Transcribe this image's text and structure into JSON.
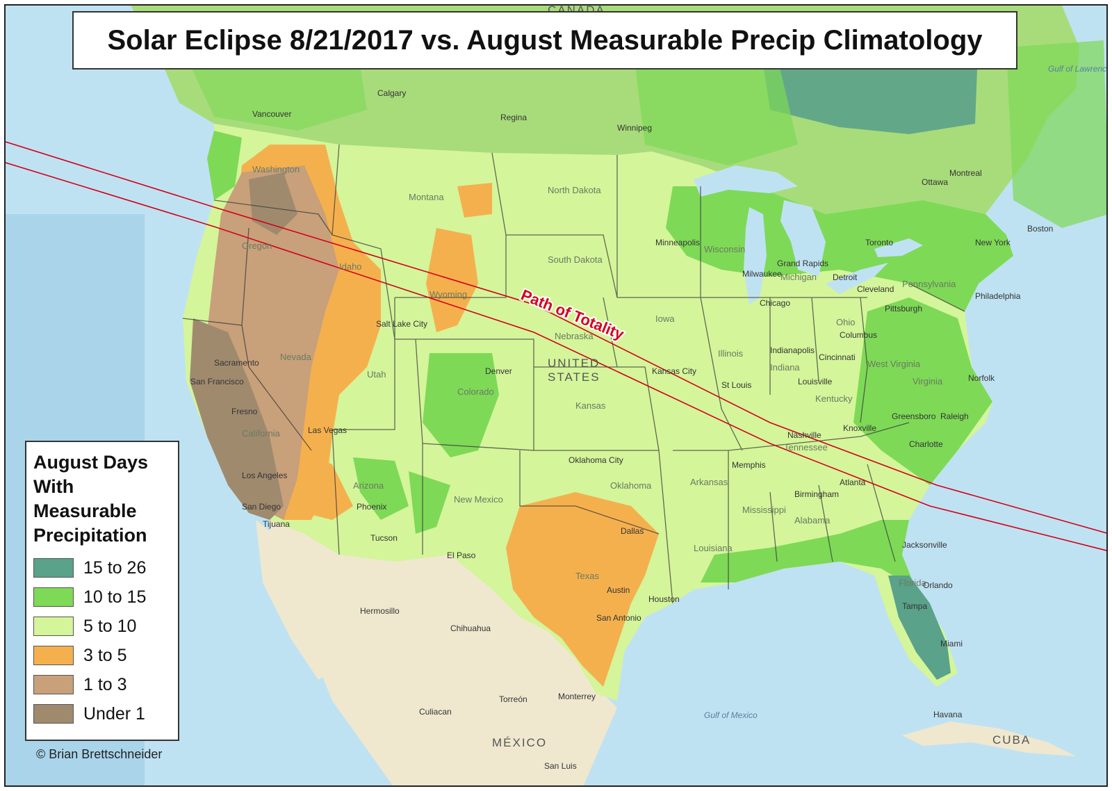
{
  "title": "Solar Eclipse 8/21/2017 vs. August Measurable Precip Climatology",
  "legend": {
    "title_lines": [
      "August Days",
      "With",
      "Measurable",
      "Precipitation"
    ],
    "items": [
      {
        "label": "15 to 26",
        "color": "#5aa28a"
      },
      {
        "label": "10 to 15",
        "color": "#7ed957"
      },
      {
        "label": "5 to 10",
        "color": "#d4f59a"
      },
      {
        "label": "3 to 5",
        "color": "#f5b04e"
      },
      {
        "label": "1 to 3",
        "color": "#c8a07a"
      },
      {
        "label": "Under 1",
        "color": "#a08a6e"
      }
    ]
  },
  "path_label": "Path of Totality",
  "credit": "© Brian Brettschneider",
  "labels": {
    "countries": [
      "UNITED",
      "STATES",
      "MÉXICO",
      "CANADA",
      "CUBA"
    ],
    "water": [
      "Gulf of Mexico",
      "Gulf of Lawrence"
    ],
    "states": [
      "Montana",
      "North Dakota",
      "South Dakota",
      "Wyoming",
      "Nebraska",
      "Iowa",
      "Kansas",
      "Colorado",
      "Utah",
      "Nevada",
      "Oregon",
      "Idaho",
      "California",
      "Arizona",
      "New Mexico",
      "Texas",
      "Oklahoma",
      "Arkansas",
      "Louisiana",
      "Mississippi",
      "Alabama",
      "Tennessee",
      "Kentucky",
      "Illinois",
      "Indiana",
      "Ohio",
      "Michigan",
      "Wisconsin",
      "Pennsylvania",
      "Virginia",
      "West Virginia",
      "Florida",
      "Washington"
    ],
    "cities": [
      "Calgary",
      "Regina",
      "Winnipeg",
      "Vancouver",
      "Minneapolis",
      "Toronto",
      "Montreal",
      "Ottawa",
      "Boston",
      "New York",
      "Philadelphia",
      "Pittsburgh",
      "Chicago",
      "Milwaukee",
      "Grand Rapids",
      "Detroit",
      "Cleveland",
      "Columbus",
      "Indianapolis",
      "Cincinnati",
      "St Louis",
      "Kansas City",
      "Louisville",
      "Nashville",
      "Knoxville",
      "Memphis",
      "Charlotte",
      "Greensboro",
      "Raleigh",
      "Norfolk",
      "Atlanta",
      "Birmingham",
      "Jacksonville",
      "Orlando",
      "Tampa",
      "Miami",
      "Houston",
      "Dallas",
      "Austin",
      "San Antonio",
      "Oklahoma City",
      "Denver",
      "Salt Lake City",
      "Phoenix",
      "Tucson",
      "El Paso",
      "Las Vegas",
      "Los Angeles",
      "San Diego",
      "Tijuana",
      "Sacramento",
      "San Francisco",
      "Fresno",
      "Hermosillo",
      "Chihuahua",
      "Torreón",
      "Monterrey",
      "Culiacan",
      "San Luis",
      "Havana"
    ]
  }
}
